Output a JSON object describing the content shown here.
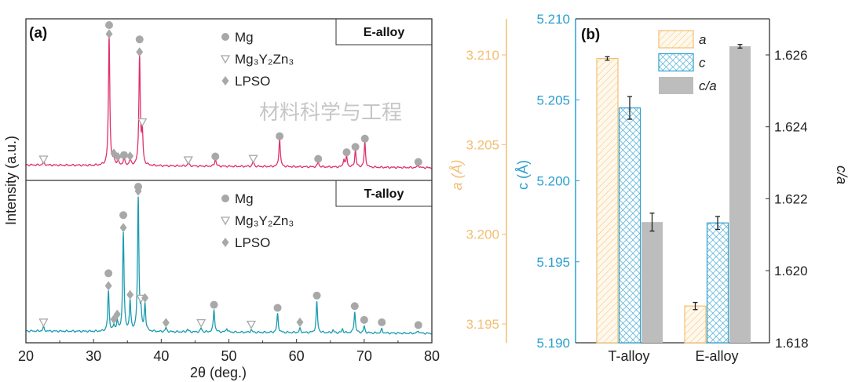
{
  "panel_a": {
    "label": "(a)",
    "xlabel": "2θ (deg.)",
    "ylabel": "Intensity (a.u.)",
    "legend": [
      {
        "marker": "circle",
        "text": "Mg"
      },
      {
        "marker": "triangle",
        "text": "Mg₃Y₂Zn₃"
      },
      {
        "marker": "diamond",
        "text": "LPSO"
      }
    ]
  },
  "panel_b": {
    "label": "(b)",
    "legend": [
      {
        "key": "a",
        "text": "a"
      },
      {
        "key": "c",
        "text": "c"
      },
      {
        "key": "ca",
        "text": "c/a"
      }
    ]
  },
  "watermark": "材料科学与工程",
  "colors": {
    "e_alloy": "#e0306a",
    "t_alloy": "#1a9bb0",
    "a": "#f2bf72",
    "c": "#2a9fd0",
    "ca": "#bdbdbd",
    "marker": "#a8a8a8"
  },
  "chart_data": [
    {
      "type": "line",
      "title": "(a)",
      "xlabel": "2θ (deg.)",
      "ylabel": "Intensity (a.u.)",
      "xlim": [
        20,
        80
      ],
      "xticks": [
        20,
        30,
        40,
        50,
        60,
        70,
        80
      ],
      "series": [
        {
          "name": "E-alloy",
          "peaks": [
            [
              22.6,
              0.03
            ],
            [
              32.3,
              1.0
            ],
            [
              33.0,
              0.05
            ],
            [
              33.6,
              0.04
            ],
            [
              34.5,
              0.06
            ],
            [
              35.4,
              0.05
            ],
            [
              36.8,
              0.85
            ],
            [
              37.2,
              0.25
            ],
            [
              44.0,
              0.03
            ],
            [
              48.0,
              0.06
            ],
            [
              53.6,
              0.04
            ],
            [
              57.5,
              0.22
            ],
            [
              63.2,
              0.04
            ],
            [
              67.0,
              0.06
            ],
            [
              67.4,
              0.08
            ],
            [
              68.7,
              0.13
            ],
            [
              70.1,
              0.19
            ],
            [
              78.0,
              0.02
            ]
          ],
          "markers": [
            [
              "triangle",
              22.6,
              0
            ],
            [
              "diamond",
              32.3,
              0
            ],
            [
              "circle",
              32.3,
              1
            ],
            [
              "diamond",
              33.0,
              0
            ],
            [
              "diamond",
              33.6,
              0
            ],
            [
              "circle",
              34.5,
              0
            ],
            [
              "diamond",
              35.4,
              0
            ],
            [
              "diamond",
              36.8,
              0
            ],
            [
              "circle",
              36.8,
              1
            ],
            [
              "triangle",
              37.2,
              0
            ],
            [
              "triangle",
              44.0,
              0
            ],
            [
              "circle",
              48.0,
              0
            ],
            [
              "triangle",
              53.6,
              0
            ],
            [
              "circle",
              57.5,
              0
            ],
            [
              "circle",
              63.2,
              0
            ],
            [
              "circle",
              67.4,
              0
            ],
            [
              "circle",
              68.7,
              0
            ],
            [
              "circle",
              70.1,
              0
            ],
            [
              "circle",
              78.0,
              0
            ]
          ]
        },
        {
          "name": "T-alloy",
          "peaks": [
            [
              22.6,
              0.03
            ],
            [
              32.2,
              0.3
            ],
            [
              33.0,
              0.04
            ],
            [
              33.5,
              0.08
            ],
            [
              34.4,
              0.74
            ],
            [
              35.4,
              0.22
            ],
            [
              36.6,
              1.0
            ],
            [
              37.0,
              0.12
            ],
            [
              37.6,
              0.2
            ],
            [
              40.7,
              0.03
            ],
            [
              43.9,
              0.02
            ],
            [
              45.9,
              0.03
            ],
            [
              47.8,
              0.17
            ],
            [
              49.7,
              0.03
            ],
            [
              53.3,
              0.02
            ],
            [
              57.2,
              0.14
            ],
            [
              60.5,
              0.03
            ],
            [
              63.0,
              0.23
            ],
            [
              65.4,
              0.02
            ],
            [
              66.8,
              0.03
            ],
            [
              68.6,
              0.16
            ],
            [
              70.0,
              0.05
            ],
            [
              72.6,
              0.03
            ],
            [
              78.0,
              0.02
            ]
          ],
          "markers": [
            [
              "triangle",
              22.6,
              0
            ],
            [
              "diamond",
              32.2,
              0
            ],
            [
              "circle",
              32.2,
              1
            ],
            [
              "diamond",
              33.0,
              0
            ],
            [
              "diamond",
              33.5,
              0
            ],
            [
              "diamond",
              34.4,
              0
            ],
            [
              "circle",
              34.4,
              1
            ],
            [
              "diamond",
              35.4,
              0
            ],
            [
              "diamond",
              36.6,
              0
            ],
            [
              "circle",
              36.6,
              1
            ],
            [
              "triangle",
              37.0,
              0
            ],
            [
              "diamond",
              37.6,
              0
            ],
            [
              "diamond",
              40.7,
              0
            ],
            [
              "triangle",
              45.9,
              0
            ],
            [
              "circle",
              47.8,
              0
            ],
            [
              "triangle",
              53.3,
              0
            ],
            [
              "circle",
              57.2,
              0
            ],
            [
              "diamond",
              60.5,
              0
            ],
            [
              "circle",
              63.0,
              0
            ],
            [
              "circle",
              68.6,
              0
            ],
            [
              "circle",
              70.0,
              0
            ],
            [
              "circle",
              72.6,
              0
            ],
            [
              "circle",
              78.0,
              0
            ]
          ]
        }
      ]
    },
    {
      "type": "bar",
      "title": "(b)",
      "categories": [
        "T-alloy",
        "E-alloy"
      ],
      "series": [
        {
          "name": "a",
          "axis": "a (Å)",
          "values": [
            3.2098,
            3.196
          ],
          "errors": [
            0.0001,
            0.0002
          ]
        },
        {
          "name": "c",
          "axis": "c (Å)",
          "values": [
            5.2045,
            5.1974
          ],
          "errors": [
            0.0007,
            0.0004
          ]
        },
        {
          "name": "c/a",
          "axis": "c/a",
          "values": [
            1.62135,
            1.62624
          ],
          "errors": [
            0.00025,
            5e-05
          ]
        }
      ],
      "axes": {
        "a": {
          "label": "a (Å)",
          "ticks": [
            "3.195",
            "3.200",
            "3.205",
            "3.210"
          ]
        },
        "c": {
          "label": "c (Å)",
          "ticks": [
            "5.190",
            "5.195",
            "5.200",
            "5.205",
            "5.210"
          ],
          "ylim": [
            5.19,
            5.21
          ]
        },
        "ca": {
          "label": "c/a",
          "ticks": [
            "1.620",
            "1.622",
            "1.624",
            "1.626"
          ]
        }
      }
    }
  ]
}
